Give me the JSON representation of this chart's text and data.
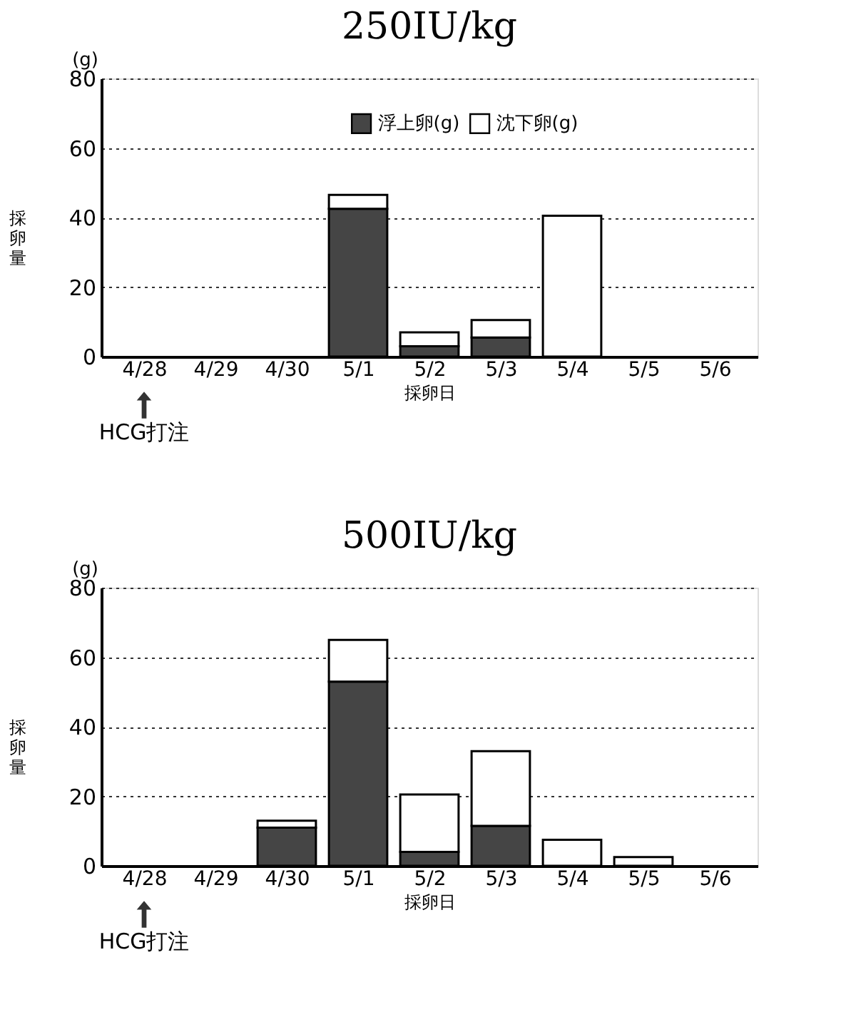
{
  "chart_data": [
    {
      "type": "bar",
      "stacked": true,
      "title": "250IU/kg",
      "xlabel": "採卵日",
      "ylabel": "採卵量",
      "legend": "top",
      "annotations": [
        "(g)",
        "HCG打注"
      ],
      "categories": [
        "4/28",
        "4/29",
        "4/30",
        "5/1",
        "5/2",
        "5/3",
        "5/4",
        "5/5",
        "5/6"
      ],
      "series": [
        {
          "name": "浮上卵(g)",
          "color": "#454545",
          "values": [
            0,
            0,
            0,
            42.5,
            3,
            5.5,
            0,
            0,
            0
          ]
        },
        {
          "name": "沈下卵(g)",
          "color": "#ffffff",
          "values": [
            0,
            0,
            0,
            4,
            4,
            5,
            40.5,
            0,
            0
          ]
        }
      ],
      "ylim": [
        0,
        80
      ],
      "yticks": [
        0,
        20,
        40,
        60,
        80
      ],
      "grid": "y"
    },
    {
      "type": "bar",
      "stacked": true,
      "title": "500IU/kg",
      "xlabel": "採卵日",
      "ylabel": "採卵量",
      "legend": false,
      "annotations": [
        "(g)",
        "HCG打注"
      ],
      "categories": [
        "4/28",
        "4/29",
        "4/30",
        "5/1",
        "5/2",
        "5/3",
        "5/4",
        "5/5",
        "5/6"
      ],
      "series": [
        {
          "name": "浮上卵(g)",
          "color": "#454545",
          "values": [
            0,
            0,
            11,
            53,
            4,
            11.5,
            0,
            0,
            0
          ]
        },
        {
          "name": "沈下卵(g)",
          "color": "#ffffff",
          "values": [
            0,
            0,
            2,
            12,
            16.5,
            21.5,
            7.5,
            2.5,
            0
          ]
        }
      ],
      "ylim": [
        0,
        80
      ],
      "yticks": [
        0,
        20,
        40,
        60,
        80
      ],
      "grid": "y"
    }
  ]
}
